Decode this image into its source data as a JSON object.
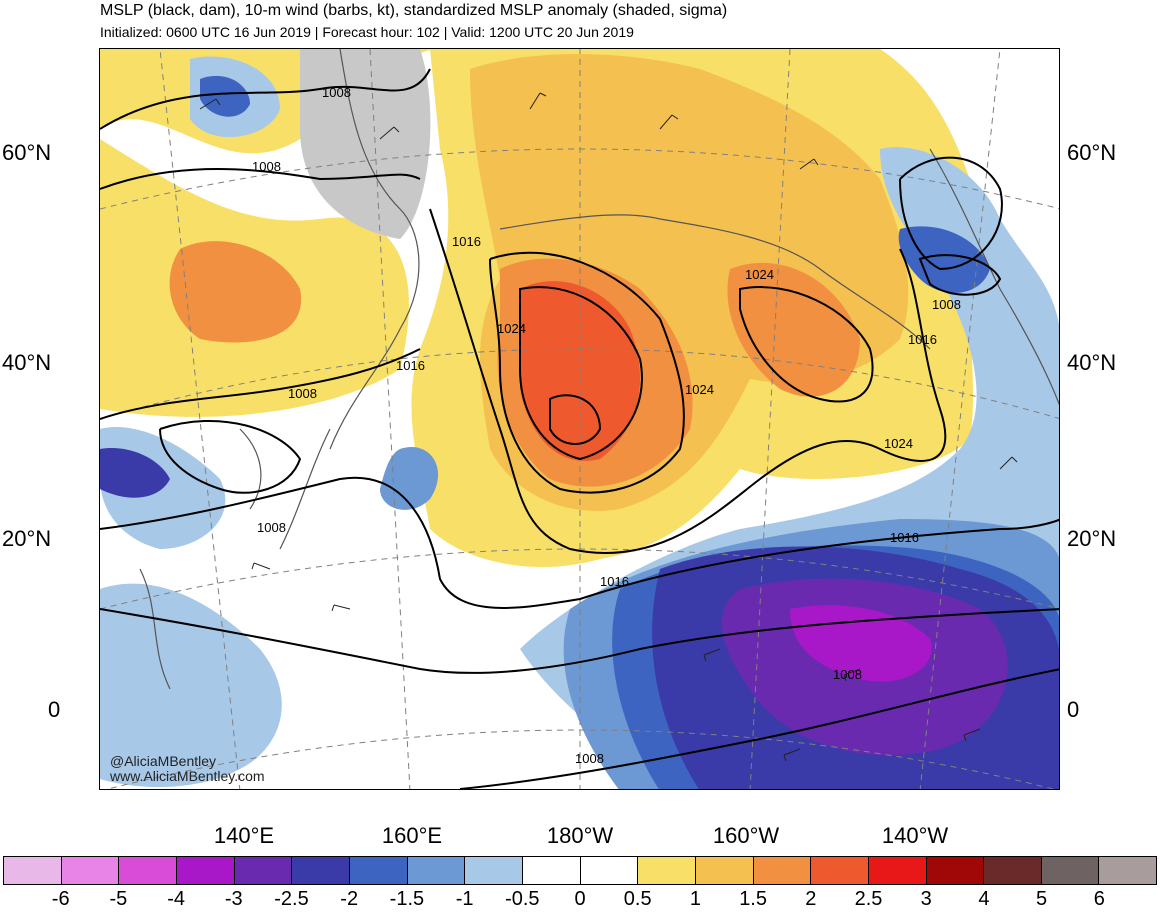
{
  "header": {
    "title": "MSLP (black, dam), 10-m wind (barbs, kt), standardized MSLP anomaly (shaded, sigma)",
    "subtitle": "Initialized: 0600 UTC 16 Jun 2019 | Forecast hour: 102 | Valid: 1200 UTC 20 Jun 2019"
  },
  "map": {
    "lat_labels": [
      "60°N",
      "40°N",
      "20°N",
      "0"
    ],
    "lon_labels": [
      "140°E",
      "160°E",
      "180°W",
      "160°W",
      "140°W"
    ],
    "contour_labels": [
      "1008",
      "1008",
      "1008",
      "1016",
      "1024",
      "1016",
      "1008",
      "1024",
      "1024",
      "1024",
      "1016",
      "1008",
      "1016",
      "1016",
      "1008",
      "1008"
    ],
    "watermark_lines": [
      "@AliciaMBentley",
      "www.AliciaMBentley.com"
    ]
  },
  "colorbar": {
    "labels": [
      "-6",
      "-5",
      "-4",
      "-3",
      "-2.5",
      "-2",
      "-1.5",
      "-1",
      "-0.5",
      "0",
      "0.5",
      "1",
      "1.5",
      "2",
      "2.5",
      "3",
      "4",
      "5",
      "6"
    ],
    "colors": [
      "#e8b8e8",
      "#e884e8",
      "#d84cd8",
      "#a818c8",
      "#6a2ab0",
      "#3a3aa8",
      "#3c64c0",
      "#6c98d4",
      "#a8c8e8",
      "#ffffff",
      "#ffffff",
      "#f8e068",
      "#f4c050",
      "#f09040",
      "#ee5a2e",
      "#e81818",
      "#a00808",
      "#6a2a2a",
      "#6e6262",
      "#a89c9c"
    ]
  }
}
